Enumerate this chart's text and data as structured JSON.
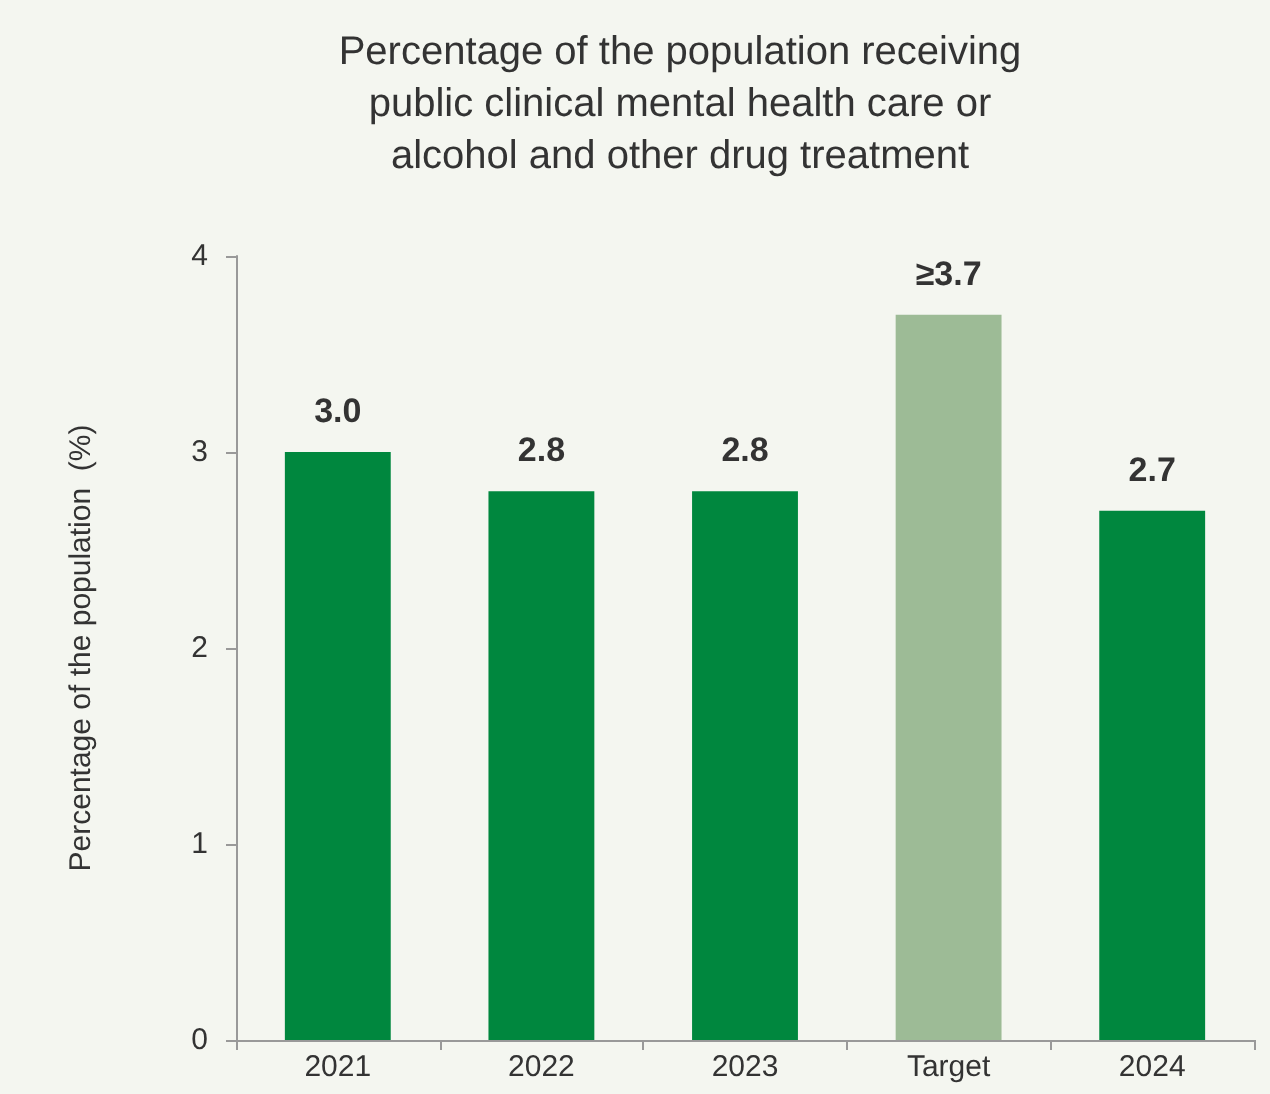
{
  "chart_data": {
    "type": "bar",
    "title": "Percentage of the population receiving\npublic clinical mental health care or\nalcohol and other drug treatment",
    "ylabel": "Percentage of the population  (%)",
    "categories": [
      "2021",
      "2022",
      "2023",
      "Target",
      "2024"
    ],
    "values": [
      3.0,
      2.8,
      2.8,
      3.7,
      2.7
    ],
    "colors": [
      "#00873e",
      "#00873e",
      "#00873e",
      "#9dbb96",
      "#00873e"
    ],
    "value_labels": [
      "3.0",
      "2.8",
      "2.8",
      "≥3.7",
      "2.7"
    ],
    "ylim": [
      0,
      4
    ],
    "yticks": [
      0,
      1,
      2,
      3,
      4
    ],
    "grid": false
  }
}
